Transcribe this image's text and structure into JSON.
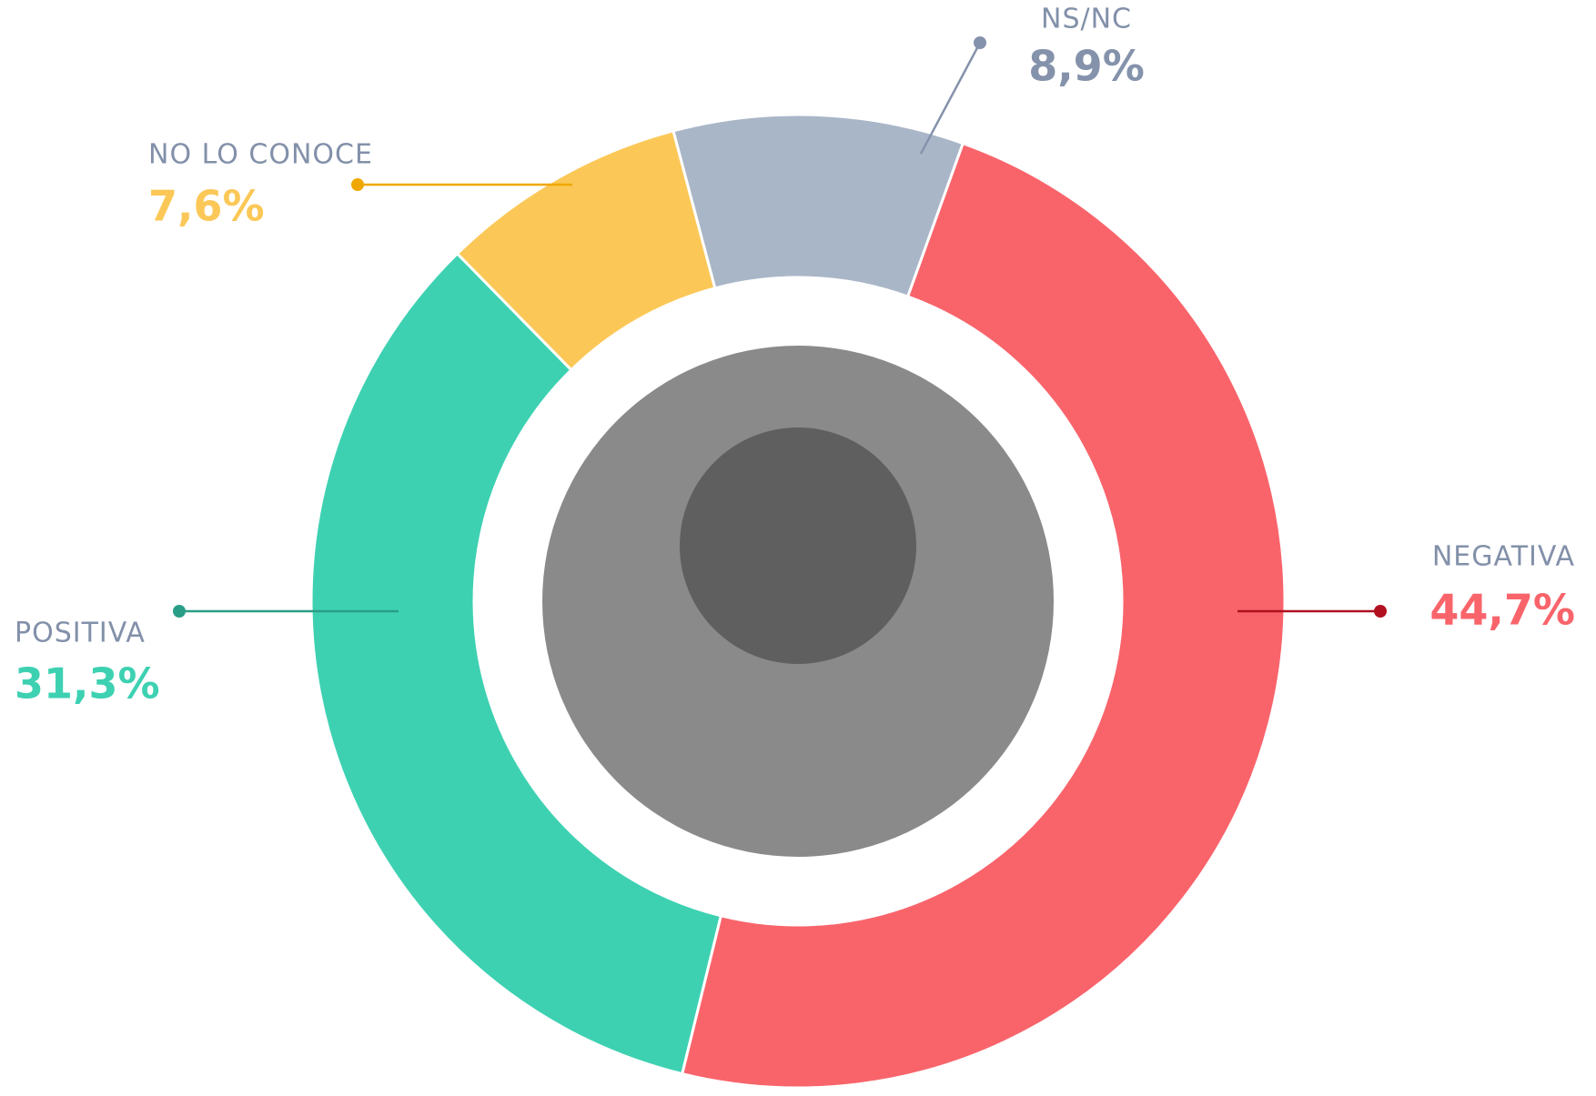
{
  "chart_data": {
    "type": "donut",
    "categories": [
      "NEGATIVA",
      "POSITIVA",
      "NO LO CONOCE",
      "NS/NC"
    ],
    "values": [
      44.7,
      31.3,
      7.6,
      8.9
    ],
    "value_labels": [
      "44,7%",
      "31,3%",
      "7,6%",
      "8,9%"
    ],
    "colors": [
      "#f9646b",
      "#3dd1b2",
      "#fbc858",
      "#a9b6c8"
    ]
  }
}
